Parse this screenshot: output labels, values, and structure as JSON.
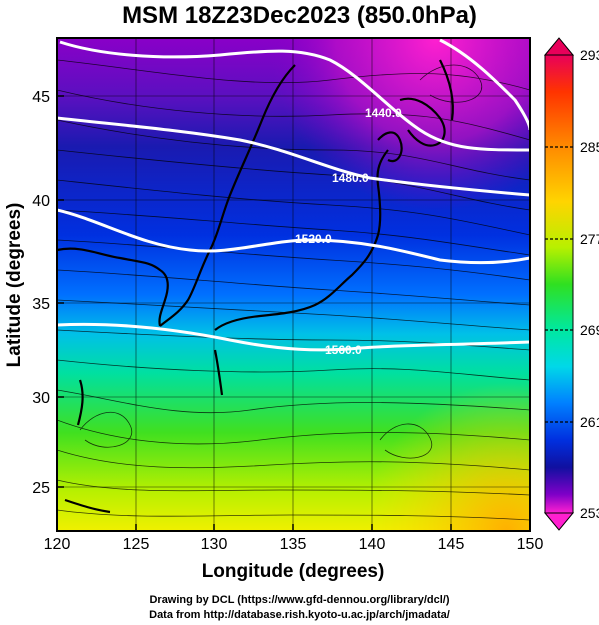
{
  "title": "MSM 18Z23Dec2023 (850.0hPa)",
  "axes": {
    "xlabel": "Longitude (degrees)",
    "ylabel": "Latitude  (degrees)",
    "xticks": [
      "120",
      "125",
      "130",
      "135",
      "140",
      "145",
      "150"
    ],
    "yticks": [
      "25",
      "30",
      "35",
      "40",
      "45"
    ]
  },
  "colorbar": {
    "ticks": [
      "293",
      "285",
      "277",
      "269",
      "261",
      "253"
    ],
    "colors": [
      "#e8005a",
      "#ff3300",
      "#ff8a00",
      "#ffd400",
      "#b8f000",
      "#30e020",
      "#00e8a0",
      "#00d8e8",
      "#0080ff",
      "#0030e0",
      "#1010a0",
      "#8000c8",
      "#ff20d0"
    ]
  },
  "contours": {
    "labels": [
      "1440.0",
      "1480.0",
      "1520.0",
      "1560.0"
    ]
  },
  "credits": {
    "line1": "Drawing by DCL (https://www.gfd-dennou.org/library/dcl/)",
    "line2": "Data from http://database.rish.kyoto-u.ac.jp/arch/jmadata/"
  }
}
